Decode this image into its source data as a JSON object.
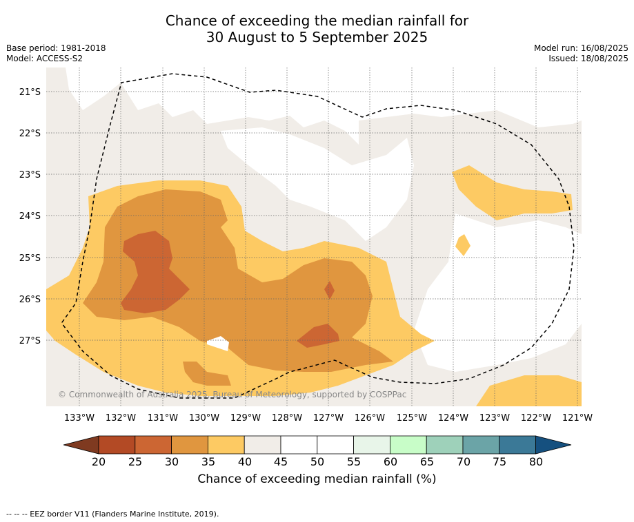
{
  "title_line1": "Chance of exceeding the median rainfall for",
  "title_line2": "30 August to 5 September 2025",
  "base_period": "Base period: 1981-2018",
  "model": "Model: ACCESS-S2",
  "model_run": "Model run: 16/08/2025",
  "issued": "Issued: 18/08/2025",
  "copyright": "© Commonwealth of Australia 2025, Bureau of Meteorology, supported by COSPPac",
  "footer": "-- -- -- EEZ border V11 (Flanders Marine Institute, 2019).",
  "map": {
    "lon_labels": [
      "133°W",
      "132°W",
      "131°W",
      "130°W",
      "129°W",
      "128°W",
      "127°W",
      "126°W",
      "125°W",
      "124°W",
      "123°W",
      "122°W",
      "121°W"
    ],
    "lat_labels": [
      "21°S",
      "22°S",
      "23°S",
      "24°S",
      "25°S",
      "26°S",
      "27°S"
    ]
  },
  "colorbar": {
    "label": "Chance of exceeding median rainfall (%)",
    "ticks": [
      "20",
      "25",
      "30",
      "35",
      "40",
      "45",
      "50",
      "55",
      "60",
      "65",
      "70",
      "75",
      "80"
    ],
    "colors": [
      "#7f3a20",
      "#b34a25",
      "#cc6633",
      "#e0963f",
      "#fdca63",
      "#f1ede8",
      "#ffffff",
      "#ffffff",
      "#e8f5e9",
      "#c8fdc8",
      "#9ed1ba",
      "#6ba4a7",
      "#3b7997",
      "#15507f"
    ]
  }
}
